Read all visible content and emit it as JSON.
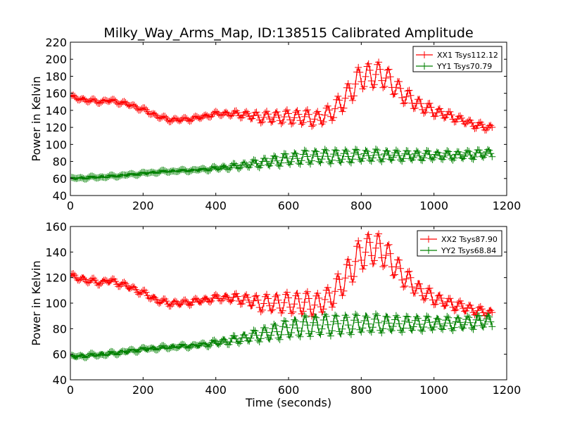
{
  "title": "Milky_Way_Arms_Map, ID:138515 Calibrated Amplitude",
  "chart_data": [
    {
      "type": "line",
      "title": "Milky_Way_Arms_Map, ID:138515 Calibrated Amplitude",
      "ylabel": "Power in Kelvin",
      "xlabel": "",
      "xlim": [
        0,
        1200
      ],
      "ylim": [
        40,
        220
      ],
      "xticks": [
        "0",
        "200",
        "400",
        "600",
        "800",
        "1000",
        "1200"
      ],
      "yticks": [
        "40",
        "60",
        "80",
        "100",
        "120",
        "140",
        "160",
        "180",
        "200",
        "220"
      ],
      "legend_position": "top-right",
      "series": [
        {
          "name": "XX1 Tsys112.12",
          "color": "#ff0000",
          "x": [
            0,
            30,
            60,
            90,
            100,
            130,
            160,
            200,
            240,
            270,
            300,
            330,
            360,
            400,
            440,
            480,
            520,
            560,
            600,
            640,
            680,
            710,
            740,
            770,
            800,
            830,
            860,
            890,
            920,
            960,
            1000,
            1040,
            1080,
            1120,
            1160
          ],
          "y": [
            156,
            153,
            151,
            150,
            152,
            150,
            147,
            141,
            133,
            129,
            129,
            130,
            132,
            136,
            136,
            135,
            132,
            132,
            132,
            132,
            130,
            136,
            146,
            162,
            180,
            181,
            182,
            169,
            157,
            146,
            139,
            134,
            128,
            122,
            119
          ],
          "amplitude": [
            2,
            2,
            2,
            2,
            2,
            2,
            2,
            2,
            2,
            2,
            2,
            2,
            2,
            2,
            3,
            4,
            6,
            7,
            8,
            9,
            9,
            10,
            12,
            14,
            15,
            15,
            15,
            12,
            10,
            8,
            6,
            5,
            4,
            4,
            4
          ]
        },
        {
          "name": "YY1 Tsys70.79",
          "color": "#008000",
          "x": [
            0,
            50,
            100,
            150,
            200,
            250,
            300,
            350,
            400,
            450,
            500,
            550,
            600,
            650,
            700,
            750,
            800,
            850,
            900,
            950,
            1000,
            1050,
            1100,
            1160
          ],
          "y": [
            60,
            61,
            62,
            64,
            66,
            68,
            69,
            70,
            72,
            74,
            77,
            80,
            83,
            85,
            86,
            86,
            87,
            87,
            87,
            87,
            87,
            87,
            88,
            90
          ],
          "amplitude": [
            1,
            1,
            1,
            1,
            1,
            1,
            1,
            1,
            2,
            3,
            4,
            6,
            7,
            8,
            8,
            8,
            7,
            7,
            6,
            6,
            5,
            5,
            5,
            5
          ]
        }
      ]
    },
    {
      "type": "line",
      "title": "",
      "ylabel": "Power in Kelvin",
      "xlabel": "Time (seconds)",
      "xlim": [
        0,
        1200
      ],
      "ylim": [
        40,
        160
      ],
      "xticks": [
        "0",
        "200",
        "400",
        "600",
        "800",
        "1000",
        "1200"
      ],
      "yticks": [
        "40",
        "60",
        "80",
        "100",
        "120",
        "140",
        "160"
      ],
      "legend_position": "top-right",
      "series": [
        {
          "name": "XX2 Tsys87.90",
          "color": "#ff0000",
          "x": [
            0,
            30,
            60,
            90,
            100,
            130,
            160,
            200,
            240,
            270,
            300,
            330,
            360,
            400,
            440,
            480,
            520,
            560,
            600,
            640,
            680,
            710,
            740,
            770,
            800,
            830,
            860,
            890,
            920,
            960,
            1000,
            1040,
            1080,
            1120,
            1160
          ],
          "y": [
            121,
            119,
            117,
            116,
            118,
            116,
            113,
            108,
            102,
            100,
            100,
            101,
            102,
            104,
            104,
            103,
            100,
            100,
            100,
            100,
            99,
            104,
            113,
            126,
            139,
            143,
            141,
            130,
            120,
            110,
            104,
            100,
            97,
            94,
            92
          ],
          "amplitude": [
            2,
            2,
            2,
            2,
            2,
            2,
            2,
            2,
            2,
            2,
            2,
            2,
            2,
            2,
            3,
            4,
            6,
            7,
            8,
            9,
            9,
            9,
            11,
            12,
            13,
            13,
            12,
            10,
            8,
            6,
            5,
            4,
            4,
            3,
            3
          ]
        },
        {
          "name": "YY2 Tsys68.84",
          "color": "#008000",
          "x": [
            0,
            50,
            100,
            150,
            200,
            250,
            300,
            350,
            400,
            450,
            500,
            550,
            600,
            650,
            700,
            750,
            800,
            850,
            900,
            950,
            1000,
            1050,
            1100,
            1160
          ],
          "y": [
            58,
            59,
            60,
            62,
            64,
            65,
            66,
            67,
            69,
            71,
            74,
            77,
            80,
            82,
            83,
            83,
            84,
            84,
            84,
            84,
            84,
            84,
            85,
            86
          ],
          "amplitude": [
            1,
            1,
            1,
            1,
            1,
            1,
            1,
            1,
            2,
            3,
            4,
            6,
            7,
            8,
            8,
            8,
            7,
            7,
            6,
            6,
            5,
            5,
            5,
            5
          ]
        }
      ]
    }
  ]
}
